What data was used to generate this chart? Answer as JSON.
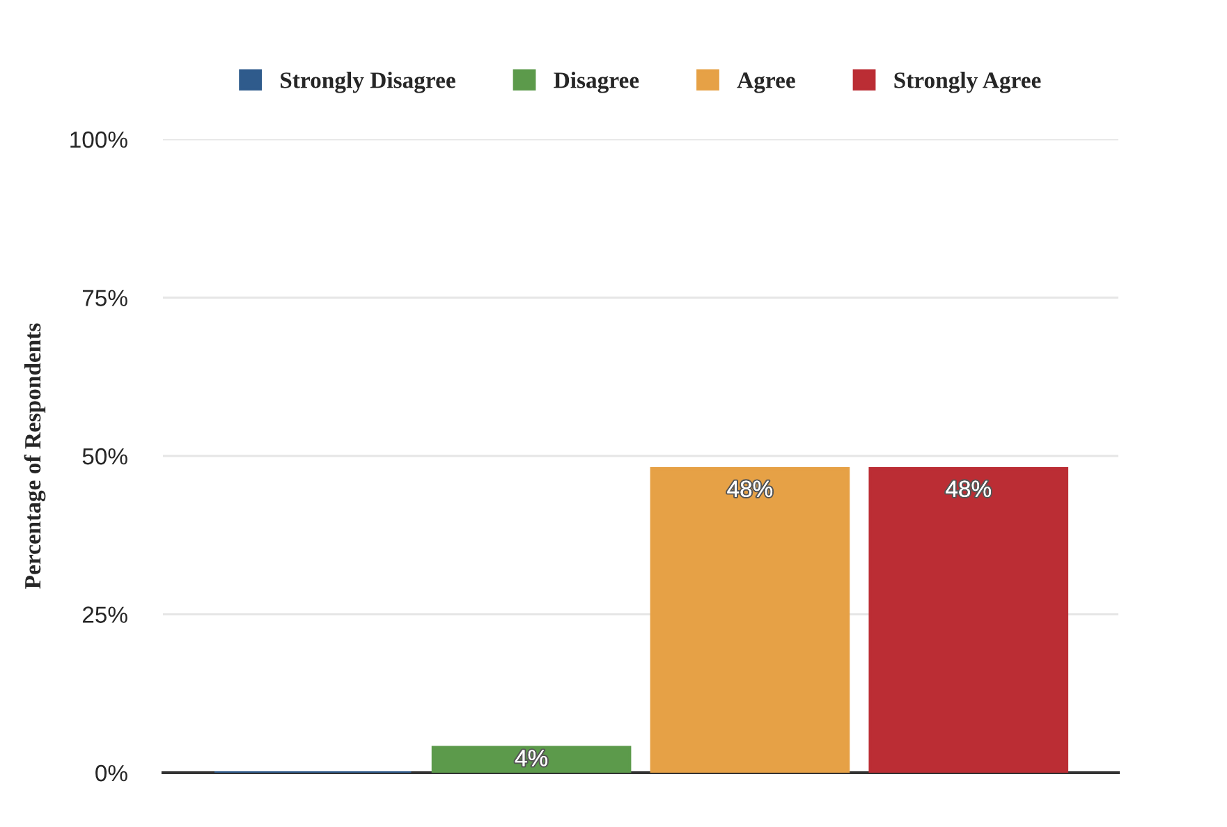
{
  "chart_data": {
    "type": "bar",
    "ylabel": "Percentage of Respondents",
    "categories": [
      null
    ],
    "series": [
      {
        "name": "Strongly Disagree",
        "color": "#2f5b8c",
        "values": [
          0
        ],
        "value_labels": [
          null
        ]
      },
      {
        "name": "Disagree",
        "color": "#5c9a4b",
        "values": [
          4
        ],
        "value_labels": [
          "4%"
        ]
      },
      {
        "name": "Agree",
        "color": "#e6a146",
        "values": [
          48
        ],
        "value_labels": [
          "48%"
        ]
      },
      {
        "name": "Strongly Agree",
        "color": "#bb2d34",
        "values": [
          48
        ],
        "value_labels": [
          "48%"
        ]
      }
    ],
    "ylim": [
      0,
      100
    ],
    "yticks": [
      {
        "value": 0,
        "label": "0%"
      },
      {
        "value": 25,
        "label": "25%"
      },
      {
        "value": 50,
        "label": "50%"
      },
      {
        "value": 75,
        "label": "75%"
      },
      {
        "value": 100,
        "label": "100%"
      }
    ],
    "grid": "y",
    "legend": "top"
  }
}
